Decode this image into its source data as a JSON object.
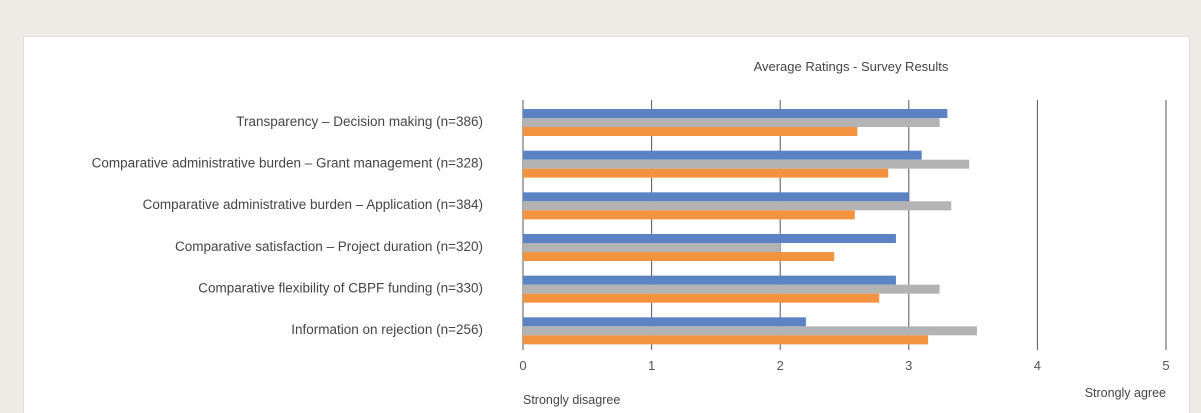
{
  "chart_data": {
    "type": "bar",
    "orientation": "horizontal",
    "title": "Average Ratings - Survey Results",
    "categories": [
      "Transparency – Decision making (n=386)",
      "Comparative administrative burden – Grant management (n=328)",
      "Comparative administrative burden – Application (n=384)",
      "Comparative satisfaction – Project duration  (n=320)",
      "Comparative flexibility of CBPF funding  (n=330)",
      "Information on rejection (n=256)"
    ],
    "series": [
      {
        "color": "#5b83c4",
        "values": [
          3.3,
          3.1,
          3.0,
          2.9,
          2.9,
          2.2
        ]
      },
      {
        "color": "#b3b3b3",
        "values": [
          3.24,
          3.47,
          3.33,
          2.0,
          3.24,
          3.53
        ]
      },
      {
        "color": "#f3923f",
        "values": [
          2.6,
          2.84,
          2.58,
          2.42,
          2.77,
          3.15
        ]
      }
    ],
    "xlim": [
      0,
      5
    ],
    "x_ticks": [
      "0",
      "1",
      "2",
      "3",
      "4",
      "5"
    ],
    "x_min_label": "Strongly disagree",
    "x_max_label": "Strongly agree",
    "grid": true,
    "legend": "none"
  }
}
